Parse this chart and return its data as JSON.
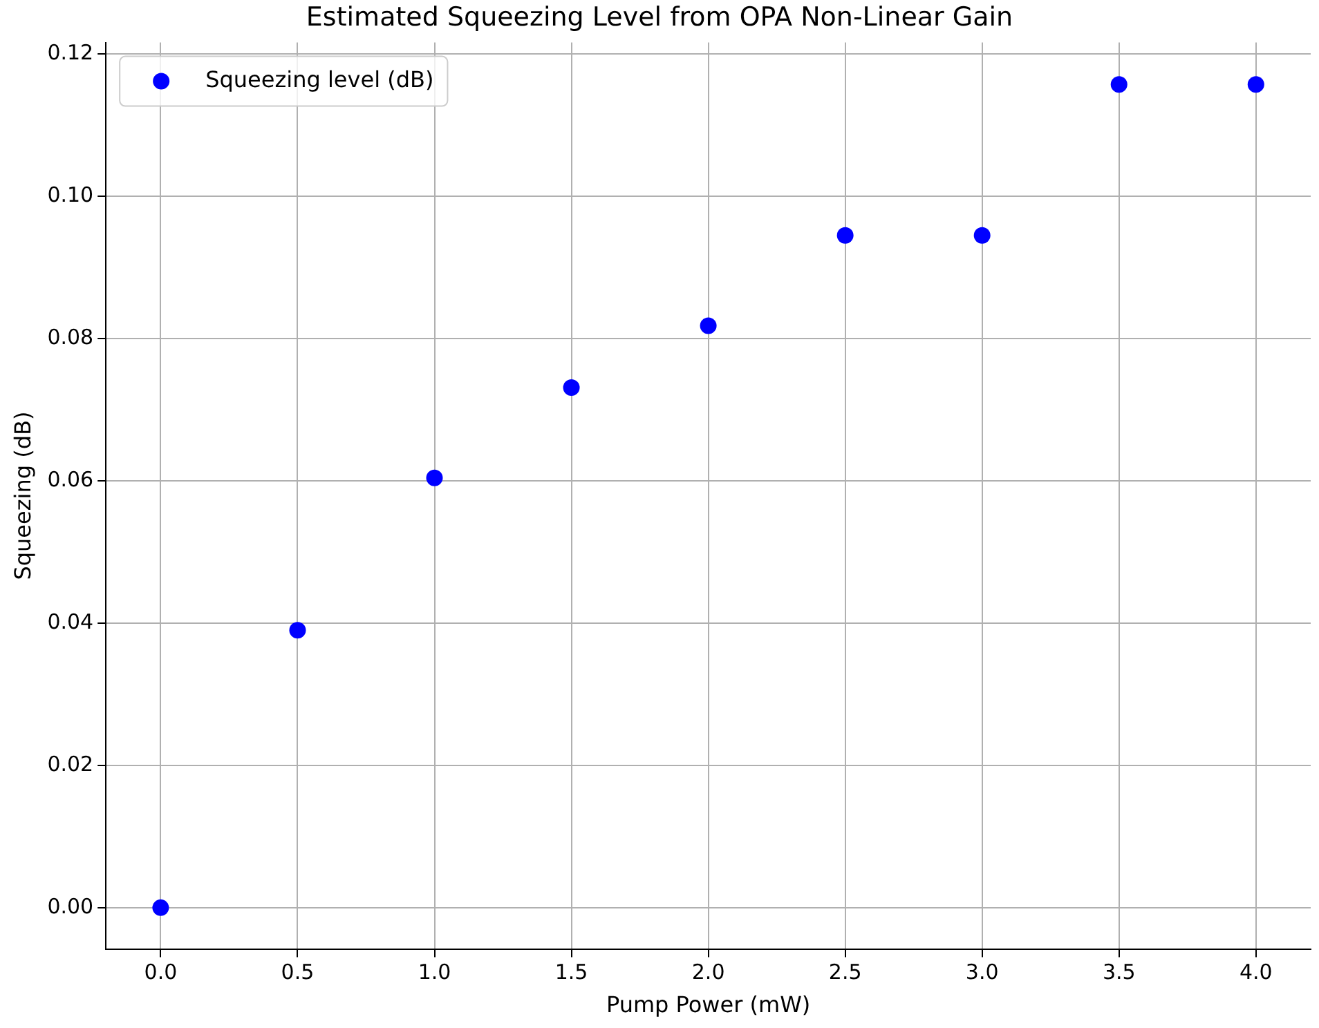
{
  "chart_data": {
    "type": "scatter",
    "title": "Estimated Squeezing Level from OPA Non-Linear Gain",
    "xlabel": "Pump Power (mW)",
    "ylabel": "Squeezing (dB)",
    "x": [
      0,
      0.5,
      1,
      1.5,
      2,
      2.5,
      3,
      3.5,
      4
    ],
    "series": [
      {
        "name": "Squeezing level (dB)",
        "color": "#0000ff",
        "values": [
          0,
          0.039,
          0.0604,
          0.0731,
          0.0818,
          0.0945,
          0.0945,
          0.1157,
          0.1157
        ]
      }
    ],
    "xlim": [
      -0.2,
      4.2
    ],
    "xticks": [
      {
        "value": 0,
        "label": "0.0"
      },
      {
        "value": 0.5,
        "label": "0.5"
      },
      {
        "value": 1,
        "label": "1.0"
      },
      {
        "value": 1.5,
        "label": "1.5"
      },
      {
        "value": 2,
        "label": "2.0"
      },
      {
        "value": 2.5,
        "label": "2.5"
      },
      {
        "value": 3,
        "label": "3.0"
      },
      {
        "value": 3.5,
        "label": "3.5"
      },
      {
        "value": 4,
        "label": "4.0"
      }
    ],
    "ylim": [
      -0.0058,
      0.1216
    ],
    "yticks": [
      {
        "value": 0,
        "label": "0.00"
      },
      {
        "value": 0.02,
        "label": "0.02"
      },
      {
        "value": 0.04,
        "label": "0.04"
      },
      {
        "value": 0.06,
        "label": "0.06"
      },
      {
        "value": 0.08,
        "label": "0.08"
      },
      {
        "value": 0.1,
        "label": "0.10"
      },
      {
        "value": 0.12,
        "label": "0.12"
      }
    ],
    "grid": true,
    "legend": "top left",
    "marker": "circle"
  }
}
